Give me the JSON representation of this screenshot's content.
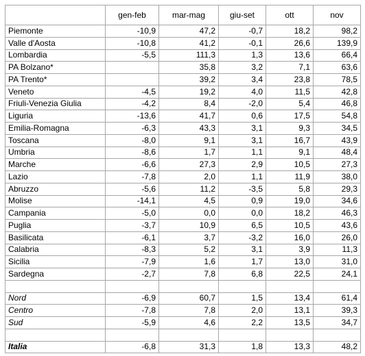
{
  "table": {
    "columns": [
      "",
      "gen-feb",
      "mar-mag",
      "giu-set",
      "ott",
      "nov"
    ],
    "regions": [
      {
        "name": "Piemonte",
        "v": [
          "-10,9",
          "47,2",
          "-0,7",
          "18,2",
          "98,2"
        ]
      },
      {
        "name": "Valle d'Aosta",
        "v": [
          "-10,8",
          "41,2",
          "-0,1",
          "26,6",
          "139,9"
        ]
      },
      {
        "name": "Lombardia",
        "v": [
          "-5,5",
          "111,3",
          "1,3",
          "13,6",
          "66,4"
        ]
      },
      {
        "name": "PA Bolzano*",
        "v": [
          "",
          "35,8",
          "3,2",
          "7,1",
          "63,6"
        ]
      },
      {
        "name": "PA Trento*",
        "v": [
          "",
          "39,2",
          "3,4",
          "23,8",
          "78,5"
        ]
      },
      {
        "name": "Veneto",
        "v": [
          "-4,5",
          "19,2",
          "4,0",
          "11,5",
          "42,8"
        ]
      },
      {
        "name": "Friuli-Venezia Giulia",
        "v": [
          "-4,2",
          "8,4",
          "-2,0",
          "5,4",
          "46,8"
        ]
      },
      {
        "name": "Liguria",
        "v": [
          "-13,6",
          "41,7",
          "0,6",
          "17,5",
          "54,8"
        ]
      },
      {
        "name": "Emilia-Romagna",
        "v": [
          "-6,3",
          "43,3",
          "3,1",
          "9,3",
          "34,5"
        ]
      },
      {
        "name": "Toscana",
        "v": [
          "-8,0",
          "9,1",
          "3,1",
          "16,7",
          "43,9"
        ]
      },
      {
        "name": "Umbria",
        "v": [
          "-8,6",
          "1,7",
          "1,1",
          "9,1",
          "48,4"
        ]
      },
      {
        "name": "Marche",
        "v": [
          "-6,6",
          "27,3",
          "2,9",
          "10,5",
          "27,3"
        ]
      },
      {
        "name": "Lazio",
        "v": [
          "-7,8",
          "2,0",
          "1,1",
          "11,9",
          "38,0"
        ]
      },
      {
        "name": "Abruzzo",
        "v": [
          "-5,6",
          "11,2",
          "-3,5",
          "5,8",
          "29,3"
        ]
      },
      {
        "name": "Molise",
        "v": [
          "-14,1",
          "4,5",
          "0,9",
          "19,0",
          "34,6"
        ]
      },
      {
        "name": "Campania",
        "v": [
          "-5,0",
          "0,0",
          "0,0",
          "18,2",
          "46,3"
        ]
      },
      {
        "name": "Puglia",
        "v": [
          "-3,7",
          "10,9",
          "6,5",
          "10,5",
          "43,6"
        ]
      },
      {
        "name": "Basilicata",
        "v": [
          "-6,1",
          "3,7",
          "-3,2",
          "16,0",
          "26,0"
        ]
      },
      {
        "name": "Calabria",
        "v": [
          "-8,3",
          "5,2",
          "3,1",
          "3,9",
          "11,3"
        ]
      },
      {
        "name": "Sicilia",
        "v": [
          "-7,9",
          "1,6",
          "1,7",
          "13,0",
          "31,0"
        ]
      },
      {
        "name": "Sardegna",
        "v": [
          "-2,7",
          "7,8",
          "6,8",
          "22,5",
          "24,1"
        ]
      }
    ],
    "areas": [
      {
        "name": "Nord",
        "v": [
          "-6,9",
          "60,7",
          "1,5",
          "13,4",
          "61,4"
        ]
      },
      {
        "name": "Centro",
        "v": [
          "-7,8",
          "7,8",
          "2,0",
          "13,1",
          "39,3"
        ]
      },
      {
        "name": "Sud",
        "v": [
          "-5,9",
          "4,6",
          "2,2",
          "13,5",
          "34,7"
        ]
      }
    ],
    "total": {
      "name": "Italia",
      "v": [
        "-6,8",
        "31,3",
        "1,8",
        "13,3",
        "48,2"
      ]
    }
  }
}
